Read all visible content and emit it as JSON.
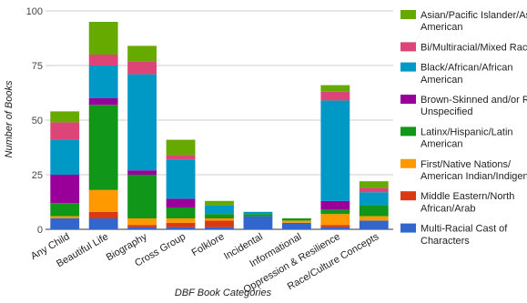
{
  "chart_data": {
    "type": "bar",
    "stacked": true,
    "xlabel": "DBF Book Categories",
    "ylabel": "Number of Books",
    "ylim": [
      0,
      100
    ],
    "yticks": [
      0,
      25,
      50,
      75,
      100
    ],
    "grid": true,
    "legend_position": "right",
    "categories": [
      "Any Child",
      "Beautiful Life",
      "Biography",
      "Cross Group",
      "Folklore",
      "Incidental",
      "Informational",
      "Oppression & Resilience",
      "Race/Culture Concepts"
    ],
    "series": [
      {
        "name": "Multi-Racial Cast of Characters",
        "color": "#3366cc",
        "legend_lines": [
          "Multi-Racial Cast of",
          "Characters"
        ],
        "values": [
          5,
          5,
          1,
          1,
          1,
          6,
          3,
          1,
          4
        ]
      },
      {
        "name": "Middle Eastern/North African/Arab",
        "color": "#dc3912",
        "legend_lines": [
          "Middle Eastern/North",
          "African/Arab"
        ],
        "values": [
          0,
          3,
          1,
          2,
          3,
          0,
          0,
          1,
          0
        ]
      },
      {
        "name": "First/Native Nations/ American Indian/Indigenous",
        "color": "#ff9900",
        "legend_lines": [
          "First/Native Nations/",
          "American Indian/Indigenous"
        ],
        "values": [
          1,
          10,
          3,
          2,
          1,
          0,
          1,
          5,
          2
        ]
      },
      {
        "name": "Latinx/Hispanic/Latin American",
        "color": "#109618",
        "legend_lines": [
          "Latinx/Hispanic/Latin",
          "American"
        ],
        "values": [
          6,
          39,
          20,
          5,
          2,
          1,
          1,
          2,
          5
        ]
      },
      {
        "name": "Brown-Skinned and/or Race Unspecified",
        "color": "#990099",
        "legend_lines": [
          "Brown-Skinned and/or Race",
          "Unspecified"
        ],
        "values": [
          13,
          3,
          2,
          4,
          0,
          0,
          0,
          4,
          0
        ]
      },
      {
        "name": "Black/African/African American",
        "color": "#0099c6",
        "legend_lines": [
          "Black/African/African",
          "American"
        ],
        "values": [
          16,
          15,
          44,
          18,
          4,
          1,
          0,
          46,
          6
        ]
      },
      {
        "name": "Bi/Multiracial/Mixed Race",
        "color": "#dd4477",
        "legend_lines": [
          "Bi/Multiracial/Mixed Race"
        ],
        "values": [
          8,
          5,
          6,
          2,
          0,
          0,
          0,
          4,
          2
        ]
      },
      {
        "name": "Asian/Pacific Islander/Asian American",
        "color": "#66aa00",
        "legend_lines": [
          "Asian/Pacific Islander/Asian",
          "American"
        ],
        "values": [
          5,
          15,
          7,
          7,
          2,
          0,
          0,
          3,
          3
        ]
      }
    ]
  }
}
